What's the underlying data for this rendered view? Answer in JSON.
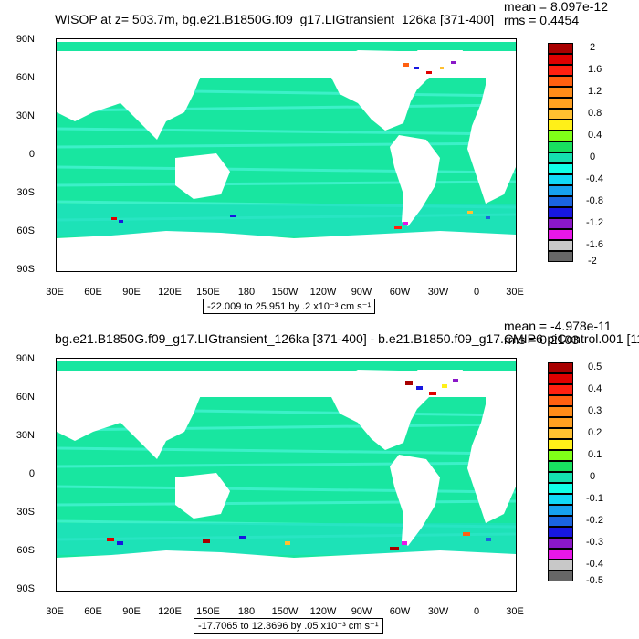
{
  "panels": [
    {
      "title": "WISOP at z= 503.7m, bg.e21.B1850G.f09_g17.LIGtransient_126ka [371-400]",
      "stats": {
        "mean": "mean = 8.097e-12",
        "rms": "rms = 0.4454"
      },
      "range_text": "-22.009 to 25.951 by .2 x10⁻³ cm s⁻¹",
      "colorbar_labels": [
        "2",
        "1.6",
        "1.2",
        "0.8",
        "0.4",
        "0",
        "-0.4",
        "-0.8",
        "-1.2",
        "-1.6",
        "-2"
      ]
    },
    {
      "title": "bg.e21.B1850G.f09_g17.LIGtransient_126ka [371-400] - b.e21.B1850.f09_g17.CMIP6-piControl.001 [11",
      "stats": {
        "mean": "mean = -4.978e-11",
        "rms": "rms = 0.2103"
      },
      "range_text": "-17.7065 to 12.3696 by .05 x10⁻³ cm s⁻¹",
      "colorbar_labels": [
        "0.5",
        "0.4",
        "0.3",
        "0.2",
        "0.1",
        "0",
        "-0.1",
        "-0.2",
        "-0.3",
        "-0.4",
        "-0.5"
      ]
    }
  ],
  "lat_labels": [
    "90N",
    "60N",
    "30N",
    "0",
    "30S",
    "60S",
    "90S"
  ],
  "lon_labels": [
    "30E",
    "60E",
    "90E",
    "120E",
    "150E",
    "180",
    "150W",
    "120W",
    "90W",
    "60W",
    "30W",
    "0",
    "30E"
  ],
  "colors": {
    "palette": [
      "#666666",
      "#c8c8c8",
      "#e817e8",
      "#8a17c8",
      "#1717e0",
      "#1a64e0",
      "#16a0f0",
      "#10d8f8",
      "#10ffe8",
      "#14e0b0",
      "#18e060",
      "#80ff18",
      "#fff018",
      "#ffc030",
      "#ffa020",
      "#ff8c18",
      "#ff6010",
      "#ff2010",
      "#e00000",
      "#a80000"
    ],
    "dominant": "#18e6a0",
    "secondary": "#3cf0c8",
    "land": "#ffffff"
  }
}
